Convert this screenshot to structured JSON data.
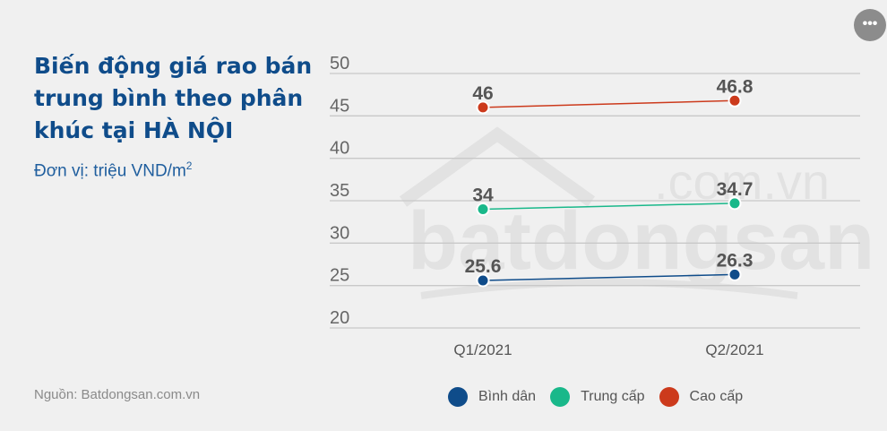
{
  "header": {
    "title": "Biến động giá rao bán trung bình theo phân khúc tại HÀ NỘI",
    "unit_prefix": "Đơn vị: triệu VND/m",
    "unit_sup": "2"
  },
  "footer": {
    "source": "Nguồn: Batdongsan.com.vn"
  },
  "menu": {
    "more_label": "•••"
  },
  "watermark": {
    "main": "batdongsan",
    "domain": ".com.vn"
  },
  "chart_data": {
    "type": "line",
    "categories": [
      "Q1/2021",
      "Q2/2021"
    ],
    "ylim": [
      20,
      50
    ],
    "yticks": [
      "20",
      "25",
      "30",
      "35",
      "40",
      "45",
      "50"
    ],
    "grid": true,
    "legend_position": "bottom",
    "series": [
      {
        "name": "Bình dân",
        "values": [
          25.6,
          26.3
        ],
        "labels": [
          "25.6",
          "26.3"
        ],
        "color": "#0f4c8a"
      },
      {
        "name": "Trung cấp",
        "values": [
          34,
          34.7
        ],
        "labels": [
          "34",
          "34.7"
        ],
        "color": "#19b88a"
      },
      {
        "name": "Cao cấp",
        "values": [
          46,
          46.8
        ],
        "labels": [
          "46",
          "46.8"
        ],
        "color": "#cc3a1c"
      }
    ]
  }
}
